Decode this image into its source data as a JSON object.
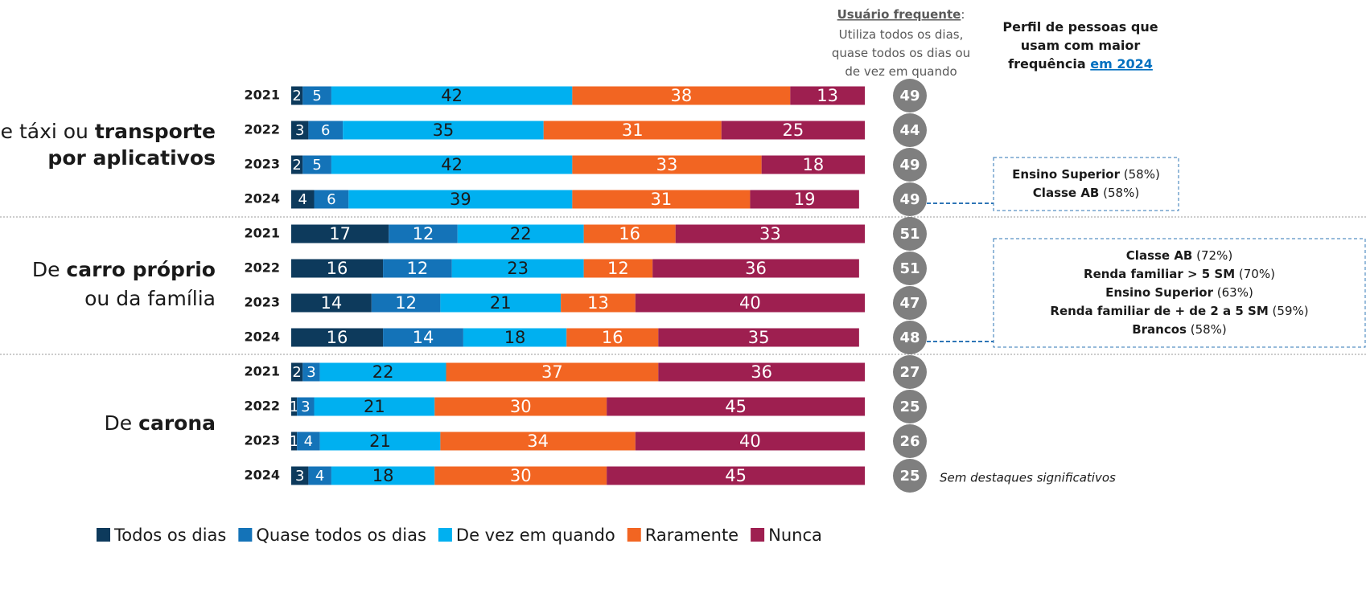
{
  "chart_data": {
    "type": "stacked_bar_horizontal_grouped",
    "xlim": [
      0,
      100
    ],
    "legend": [
      {
        "name": "Todos os dias",
        "color": "#0d3a5c",
        "label_color": "#ffffff"
      },
      {
        "name": "Quase todos os dias",
        "color": "#1473b8",
        "label_color": "#ffffff"
      },
      {
        "name": "De vez em quando",
        "color": "#00b0f0",
        "label_color": "#1a1a1a"
      },
      {
        "name": "Raramente",
        "color": "#f26522",
        "label_color": "#ffffff"
      },
      {
        "name": "Nunca",
        "color": "#9e1f50",
        "label_color": "#ffffff"
      }
    ],
    "frequent_header": [
      [
        {
          "text": "Usuário frequente",
          "bold": true,
          "underline": true
        },
        {
          "text": ":"
        }
      ],
      [
        {
          "text": "Utiliza todos os dias,"
        }
      ],
      [
        {
          "text": "quase todos os dias ou"
        }
      ],
      [
        {
          "text": "de vez em quando"
        }
      ]
    ],
    "profile_header": [
      [
        {
          "text": "Perfil de pessoas que",
          "bold": true
        }
      ],
      [
        {
          "text": "usam com maior",
          "bold": true
        }
      ],
      [
        {
          "text": "frequência ",
          "bold": true
        },
        {
          "text": "em 2024",
          "bold": true,
          "underline": true,
          "link": true
        }
      ]
    ],
    "groups": [
      {
        "label_lines": [
          [
            {
              "text": "De táxi ou "
            },
            {
              "text": "transporte",
              "bold": true
            }
          ],
          [
            {
              "text": "por aplicativos",
              "bold": true
            }
          ]
        ],
        "rows": [
          {
            "year": "2021",
            "values": [
              2,
              5,
              42,
              38,
              13
            ],
            "frequent": 49
          },
          {
            "year": "2022",
            "values": [
              3,
              6,
              35,
              31,
              25
            ],
            "frequent": 44
          },
          {
            "year": "2023",
            "values": [
              2,
              5,
              42,
              33,
              18
            ],
            "frequent": 49
          },
          {
            "year": "2024",
            "values": [
              4,
              6,
              39,
              31,
              19
            ],
            "frequent": 49
          }
        ],
        "profile": [
          [
            {
              "text": "Ensino Superior",
              "bold": true
            },
            {
              "text": " (58%)"
            }
          ],
          [
            {
              "text": "Classe AB",
              "bold": true
            },
            {
              "text": " (58%)"
            }
          ]
        ]
      },
      {
        "label_lines": [
          [
            {
              "text": "De "
            },
            {
              "text": "carro próprio",
              "bold": true
            }
          ],
          [
            {
              "text": "ou da família"
            }
          ]
        ],
        "rows": [
          {
            "year": "2021",
            "values": [
              17,
              12,
              22,
              16,
              33
            ],
            "frequent": 51
          },
          {
            "year": "2022",
            "values": [
              16,
              12,
              23,
              12,
              36
            ],
            "frequent": 51
          },
          {
            "year": "2023",
            "values": [
              14,
              12,
              21,
              13,
              40
            ],
            "frequent": 47
          },
          {
            "year": "2024",
            "values": [
              16,
              14,
              18,
              16,
              35
            ],
            "frequent": 48
          }
        ],
        "profile": [
          [
            {
              "text": "Classe AB",
              "bold": true
            },
            {
              "text": " (72%)"
            }
          ],
          [
            {
              "text": "Renda familiar > 5 SM",
              "bold": true
            },
            {
              "text": " (70%)"
            }
          ],
          [
            {
              "text": "Ensino Superior",
              "bold": true
            },
            {
              "text": " (63%)"
            }
          ],
          [
            {
              "text": "Renda familiar de + de 2 a 5 SM",
              "bold": true
            },
            {
              "text": " (59%)"
            }
          ],
          [
            {
              "text": "Brancos",
              "bold": true
            },
            {
              "text": " (58%)"
            }
          ]
        ]
      },
      {
        "label_lines": [
          [
            {
              "text": "De "
            },
            {
              "text": "carona",
              "bold": true
            }
          ]
        ],
        "rows": [
          {
            "year": "2021",
            "values": [
              2,
              3,
              22,
              37,
              36
            ],
            "frequent": 27
          },
          {
            "year": "2022",
            "values": [
              1,
              3,
              21,
              30,
              45
            ],
            "frequent": 25
          },
          {
            "year": "2023",
            "values": [
              1,
              4,
              21,
              34,
              40
            ],
            "frequent": 26
          },
          {
            "year": "2024",
            "values": [
              3,
              4,
              18,
              30,
              45
            ],
            "frequent": 25
          }
        ],
        "note": "Sem destaques significativos"
      }
    ]
  }
}
